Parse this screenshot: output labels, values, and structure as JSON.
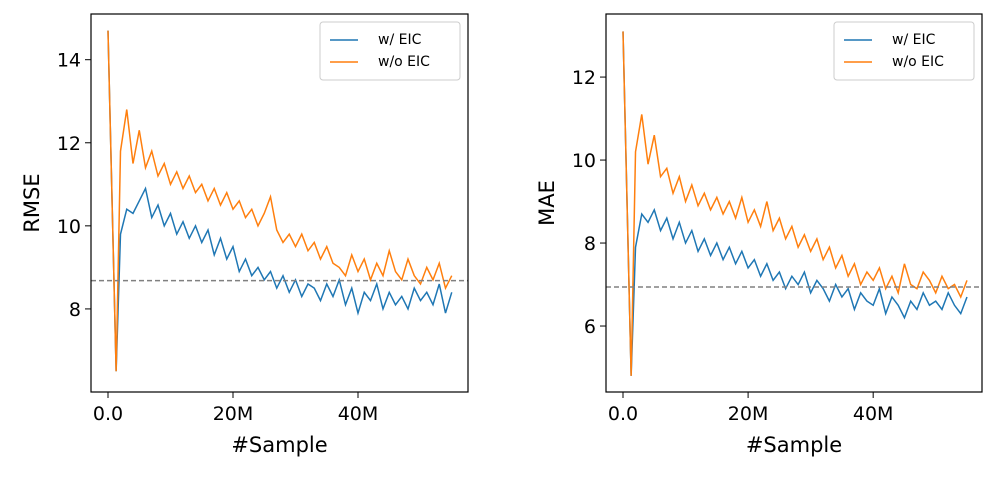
{
  "chart_data": [
    {
      "type": "line",
      "xlabel": "#Sample",
      "ylabel": "RMSE",
      "legend": "upper right",
      "x": [
        0,
        1300000,
        2000000,
        3000000,
        4000000,
        5000000,
        6000000,
        7000000,
        8000000,
        9000000,
        10000000,
        11000000,
        12000000,
        13000000,
        14000000,
        15000000,
        16000000,
        17000000,
        18000000,
        19000000,
        20000000,
        21000000,
        22000000,
        23000000,
        24000000,
        25000000,
        26000000,
        27000000,
        28000000,
        29000000,
        30000000,
        31000000,
        32000000,
        33000000,
        34000000,
        35000000,
        36000000,
        37000000,
        38000000,
        39000000,
        40000000,
        41000000,
        42000000,
        43000000,
        44000000,
        45000000,
        46000000,
        47000000,
        48000000,
        49000000,
        50000000,
        51000000,
        52000000,
        53000000,
        54000000,
        55000000
      ],
      "series": [
        {
          "name": "w/ EIC",
          "color": "#1f77b4",
          "values": [
            14.7,
            6.5,
            9.8,
            10.4,
            10.3,
            10.6,
            10.9,
            10.2,
            10.5,
            10.0,
            10.3,
            9.8,
            10.1,
            9.7,
            10.0,
            9.6,
            9.9,
            9.3,
            9.7,
            9.2,
            9.5,
            8.9,
            9.2,
            8.8,
            9.0,
            8.7,
            8.9,
            8.5,
            8.8,
            8.4,
            8.7,
            8.3,
            8.6,
            8.5,
            8.2,
            8.6,
            8.3,
            8.7,
            8.1,
            8.5,
            7.9,
            8.4,
            8.2,
            8.6,
            8.0,
            8.4,
            8.1,
            8.3,
            8.0,
            8.5,
            8.2,
            8.4,
            8.1,
            8.6,
            7.9,
            8.4
          ]
        },
        {
          "name": "w/o EIC",
          "color": "#ff7f0e",
          "values": [
            14.7,
            6.5,
            11.8,
            12.8,
            11.5,
            12.3,
            11.4,
            11.8,
            11.2,
            11.5,
            11.0,
            11.3,
            10.9,
            11.2,
            10.8,
            11.0,
            10.6,
            10.9,
            10.5,
            10.8,
            10.4,
            10.6,
            10.2,
            10.4,
            10.0,
            10.3,
            10.7,
            9.9,
            9.6,
            9.8,
            9.5,
            9.8,
            9.4,
            9.6,
            9.2,
            9.5,
            9.1,
            9.0,
            8.8,
            9.3,
            8.9,
            9.2,
            8.7,
            9.1,
            8.8,
            9.4,
            8.9,
            8.7,
            9.2,
            8.8,
            8.6,
            9.0,
            8.7,
            9.1,
            8.5,
            8.8
          ]
        }
      ],
      "reference_line": 8.68,
      "reference_color": "#808080",
      "xlim": [
        -2720000,
        57600000
      ],
      "ylim": [
        6.0,
        15.1
      ],
      "xticks": [
        {
          "value": 0,
          "label": "0.0"
        },
        {
          "value": 20000000,
          "label": "20M"
        },
        {
          "value": 40000000,
          "label": "40M"
        }
      ],
      "yticks": [
        8,
        10,
        12,
        14
      ]
    },
    {
      "type": "line",
      "xlabel": "#Sample",
      "ylabel": "MAE",
      "legend": "upper right",
      "x": [
        0,
        1300000,
        2000000,
        3000000,
        4000000,
        5000000,
        6000000,
        7000000,
        8000000,
        9000000,
        10000000,
        11000000,
        12000000,
        13000000,
        14000000,
        15000000,
        16000000,
        17000000,
        18000000,
        19000000,
        20000000,
        21000000,
        22000000,
        23000000,
        24000000,
        25000000,
        26000000,
        27000000,
        28000000,
        29000000,
        30000000,
        31000000,
        32000000,
        33000000,
        34000000,
        35000000,
        36000000,
        37000000,
        38000000,
        39000000,
        40000000,
        41000000,
        42000000,
        43000000,
        44000000,
        45000000,
        46000000,
        47000000,
        48000000,
        49000000,
        50000000,
        51000000,
        52000000,
        53000000,
        54000000,
        55000000
      ],
      "series": [
        {
          "name": "w/ EIC",
          "color": "#1f77b4",
          "values": [
            13.1,
            4.8,
            7.9,
            8.7,
            8.5,
            8.8,
            8.3,
            8.6,
            8.1,
            8.5,
            8.0,
            8.3,
            7.8,
            8.1,
            7.7,
            8.0,
            7.6,
            7.9,
            7.5,
            7.8,
            7.4,
            7.6,
            7.2,
            7.5,
            7.1,
            7.3,
            6.9,
            7.2,
            7.0,
            7.3,
            6.8,
            7.1,
            6.9,
            6.6,
            7.0,
            6.7,
            6.9,
            6.4,
            6.8,
            6.6,
            6.5,
            6.9,
            6.3,
            6.7,
            6.5,
            6.2,
            6.6,
            6.4,
            6.8,
            6.5,
            6.6,
            6.4,
            6.8,
            6.5,
            6.3,
            6.7
          ]
        },
        {
          "name": "w/o EIC",
          "color": "#ff7f0e",
          "values": [
            13.1,
            4.8,
            10.2,
            11.1,
            9.9,
            10.6,
            9.6,
            9.8,
            9.2,
            9.6,
            9.0,
            9.4,
            8.9,
            9.2,
            8.8,
            9.1,
            8.7,
            9.0,
            8.6,
            9.1,
            8.5,
            8.8,
            8.4,
            9.0,
            8.3,
            8.6,
            8.1,
            8.4,
            7.9,
            8.2,
            7.8,
            8.1,
            7.6,
            7.9,
            7.4,
            7.7,
            7.2,
            7.5,
            7.0,
            7.3,
            7.1,
            7.4,
            6.9,
            7.2,
            6.8,
            7.5,
            7.0,
            6.9,
            7.3,
            7.1,
            6.8,
            7.2,
            6.9,
            7.0,
            6.7,
            7.1
          ]
        }
      ],
      "reference_line": 6.94,
      "reference_color": "#808080",
      "xlim": [
        -2720000,
        57400000
      ],
      "ylim": [
        4.41,
        13.52
      ],
      "xticks": [
        {
          "value": 0,
          "label": "0.0"
        },
        {
          "value": 20000000,
          "label": "20M"
        },
        {
          "value": 40000000,
          "label": "40M"
        }
      ],
      "yticks": [
        6,
        8,
        10,
        12
      ]
    }
  ]
}
